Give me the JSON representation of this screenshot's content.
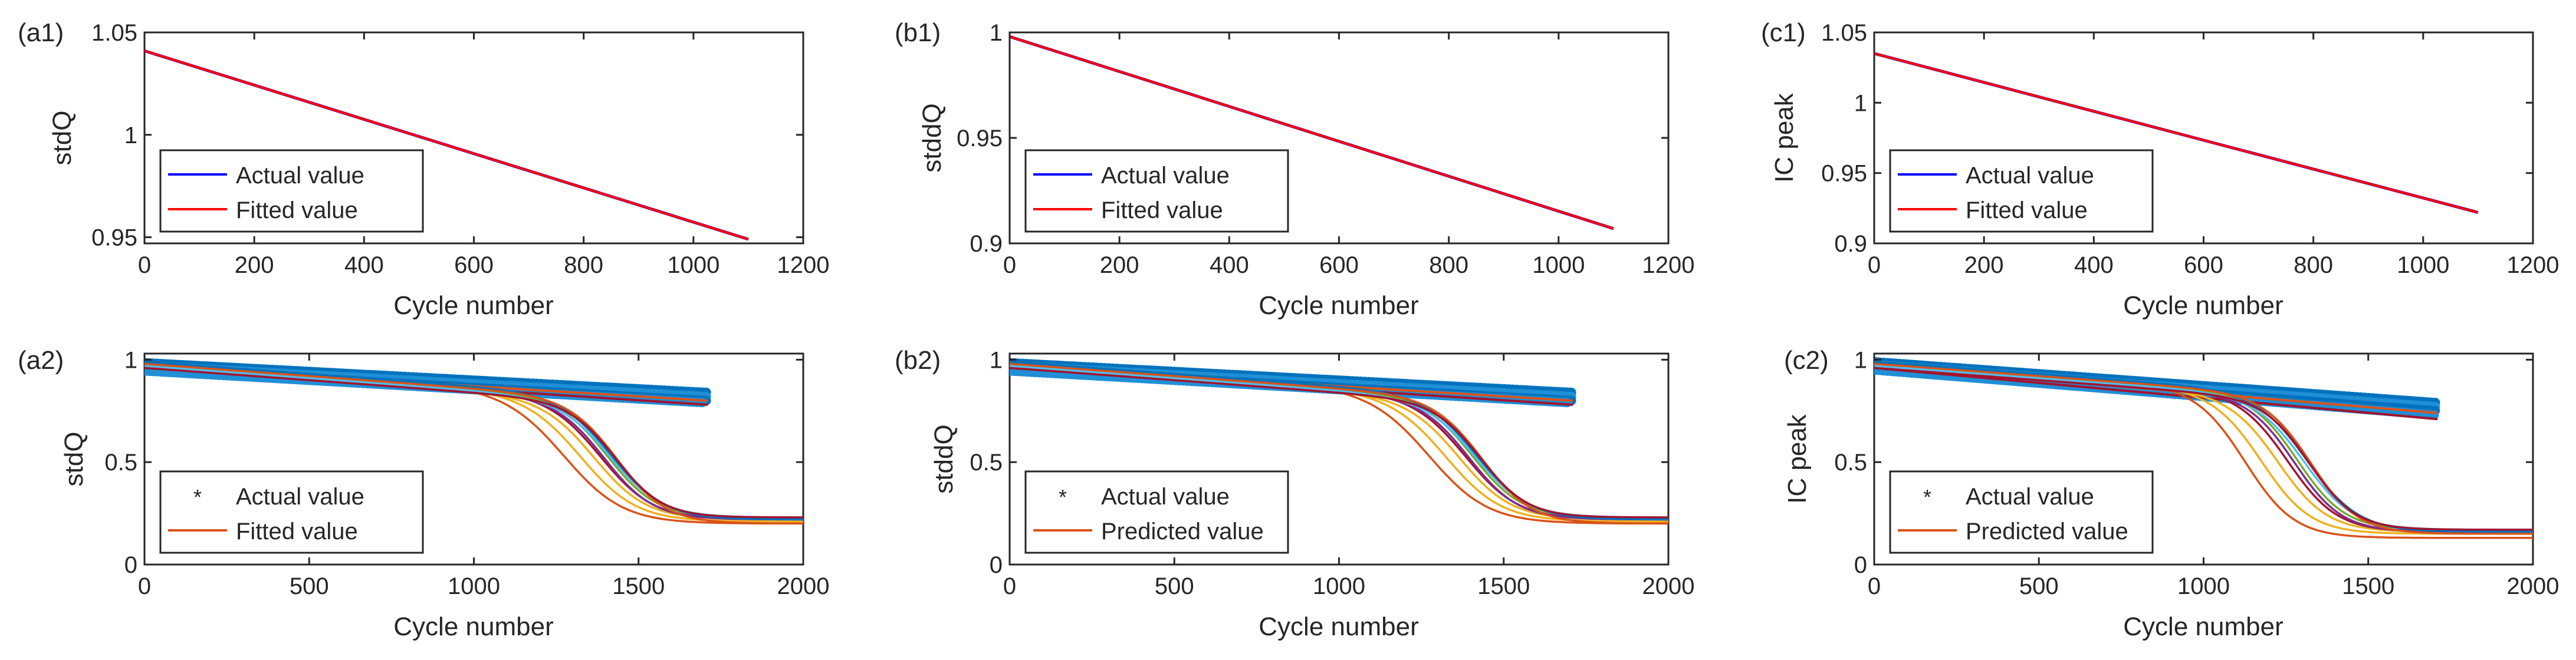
{
  "chart_data": [
    {
      "panel_label": "(a1)",
      "type": "line",
      "xlabel": "Cycle number",
      "ylabel": "stdQ",
      "xlim": [
        0,
        1200
      ],
      "ylim": [
        0.947,
        1.05
      ],
      "xticks": [
        0,
        200,
        400,
        600,
        800,
        1000,
        1200
      ],
      "yticks": [
        0.95,
        1,
        1.05
      ],
      "ytick_labels": [
        "0.95",
        "1",
        "1.05"
      ],
      "legend_placement": "bottom-left",
      "series": [
        {
          "name": "Actual value",
          "color": "#0000ff",
          "style": "solid",
          "x": [
            0,
            1100
          ],
          "y": [
            1.041,
            0.949
          ]
        },
        {
          "name": "Fitted value",
          "color": "#ff0000",
          "style": "solid",
          "x": [
            0,
            1100
          ],
          "y": [
            1.041,
            0.949
          ]
        }
      ]
    },
    {
      "panel_label": "(b1)",
      "type": "line",
      "xlabel": "Cycle number",
      "ylabel": "stddQ",
      "xlim": [
        0,
        1200
      ],
      "ylim": [
        0.9,
        1.0
      ],
      "xticks": [
        0,
        200,
        400,
        600,
        800,
        1000,
        1200
      ],
      "yticks": [
        0.9,
        0.95,
        1
      ],
      "ytick_labels": [
        "0.9",
        "0.95",
        "1"
      ],
      "legend_placement": "bottom-left",
      "series": [
        {
          "name": "Actual value",
          "color": "#0000ff",
          "style": "solid",
          "x": [
            0,
            1100
          ],
          "y": [
            0.998,
            0.907
          ]
        },
        {
          "name": "Fitted value",
          "color": "#ff0000",
          "style": "solid",
          "x": [
            0,
            1100
          ],
          "y": [
            0.998,
            0.907
          ]
        }
      ]
    },
    {
      "panel_label": "(c1)",
      "type": "line",
      "xlabel": "Cycle number",
      "ylabel": "IC peak",
      "xlim": [
        0,
        1200
      ],
      "ylim": [
        0.9,
        1.05
      ],
      "xticks": [
        0,
        200,
        400,
        600,
        800,
        1000,
        1200
      ],
      "yticks": [
        0.9,
        0.95,
        1,
        1.05
      ],
      "ytick_labels": [
        "0.9",
        "0.95",
        "1",
        "1.05"
      ],
      "legend_placement": "bottom-left",
      "series": [
        {
          "name": "Actual value",
          "color": "#0000ff",
          "style": "solid",
          "x": [
            0,
            1100
          ],
          "y": [
            1.035,
            0.922
          ]
        },
        {
          "name": "Fitted value",
          "color": "#ff0000",
          "style": "solid",
          "x": [
            0,
            1100
          ],
          "y": [
            1.035,
            0.922
          ]
        }
      ]
    },
    {
      "panel_label": "(a2)",
      "type": "line",
      "xlabel": "Cycle number",
      "ylabel": "stdQ",
      "xlim": [
        0,
        2000
      ],
      "ylim": [
        0,
        1.03
      ],
      "xticks": [
        0,
        500,
        1000,
        1500,
        2000
      ],
      "yticks": [
        0,
        0.5,
        1
      ],
      "ytick_labels": [
        "0",
        "0.5",
        "1"
      ],
      "legend_placement": "bottom-left",
      "legend": [
        {
          "name": "Actual value",
          "color": "#0072bd",
          "marker": "star"
        },
        {
          "name": "Fitted value",
          "color": "#d95319",
          "marker": "line"
        }
      ],
      "actual_tracks": [
        {
          "end_x": 1710,
          "start_y": 0.985,
          "end_y": 0.84
        },
        {
          "end_x": 1710,
          "start_y": 0.97,
          "end_y": 0.82
        },
        {
          "end_x": 1710,
          "start_y": 0.955,
          "end_y": 0.8
        },
        {
          "end_x": 1700,
          "start_y": 0.945,
          "end_y": 0.79
        }
      ],
      "fitted_curves": [
        {
          "color": "#d95319",
          "start": 0.99,
          "plateau": 0.2,
          "midpoint": 1280,
          "width": 90
        },
        {
          "color": "#edb120",
          "start": 0.98,
          "plateau": 0.21,
          "midpoint": 1330,
          "width": 85
        },
        {
          "color": "#edb120",
          "start": 0.97,
          "plateau": 0.22,
          "midpoint": 1370,
          "width": 80
        },
        {
          "color": "#a2142f",
          "start": 0.98,
          "plateau": 0.22,
          "midpoint": 1390,
          "width": 80
        },
        {
          "color": "#7e2f8e",
          "start": 0.97,
          "plateau": 0.22,
          "midpoint": 1400,
          "width": 75
        },
        {
          "color": "#77ac30",
          "start": 0.98,
          "plateau": 0.23,
          "midpoint": 1410,
          "width": 75
        },
        {
          "color": "#4dbeee",
          "start": 0.97,
          "plateau": 0.23,
          "midpoint": 1420,
          "width": 78
        },
        {
          "color": "#0072bd",
          "start": 0.99,
          "plateau": 0.22,
          "midpoint": 1425,
          "width": 80
        },
        {
          "color": "#d95319",
          "start": 0.98,
          "plateau": 0.2,
          "midpoint": 1440,
          "width": 75
        },
        {
          "color": "#a2142f",
          "start": 0.96,
          "plateau": 0.23,
          "midpoint": 1435,
          "width": 72
        }
      ],
      "fitted_lines": [
        {
          "color": "#d95319",
          "y0": 0.97,
          "x1": 1710,
          "y1": 0.8
        },
        {
          "color": "#a2142f",
          "y0": 0.96,
          "x1": 1710,
          "y1": 0.78
        }
      ]
    },
    {
      "panel_label": "(b2)",
      "type": "line",
      "xlabel": "Cycle number",
      "ylabel": "stddQ",
      "xlim": [
        0,
        2000
      ],
      "ylim": [
        0,
        1.03
      ],
      "xticks": [
        0,
        500,
        1000,
        1500,
        2000
      ],
      "yticks": [
        0,
        0.5,
        1
      ],
      "ytick_labels": [
        "0",
        "0.5",
        "1"
      ],
      "legend_placement": "bottom-left",
      "legend": [
        {
          "name": "Actual value",
          "color": "#0072bd",
          "marker": "star"
        },
        {
          "name": "Predicted value",
          "color": "#d95319",
          "marker": "line"
        }
      ],
      "actual_tracks": [
        {
          "end_x": 1710,
          "start_y": 0.985,
          "end_y": 0.84
        },
        {
          "end_x": 1710,
          "start_y": 0.97,
          "end_y": 0.82
        },
        {
          "end_x": 1710,
          "start_y": 0.955,
          "end_y": 0.8
        },
        {
          "end_x": 1700,
          "start_y": 0.945,
          "end_y": 0.79
        }
      ],
      "fitted_curves": [
        {
          "color": "#d95319",
          "start": 0.99,
          "plateau": 0.2,
          "midpoint": 1280,
          "width": 90
        },
        {
          "color": "#edb120",
          "start": 0.98,
          "plateau": 0.21,
          "midpoint": 1330,
          "width": 85
        },
        {
          "color": "#edb120",
          "start": 0.97,
          "plateau": 0.22,
          "midpoint": 1370,
          "width": 80
        },
        {
          "color": "#a2142f",
          "start": 0.98,
          "plateau": 0.22,
          "midpoint": 1390,
          "width": 80
        },
        {
          "color": "#7e2f8e",
          "start": 0.97,
          "plateau": 0.22,
          "midpoint": 1400,
          "width": 75
        },
        {
          "color": "#77ac30",
          "start": 0.98,
          "plateau": 0.23,
          "midpoint": 1410,
          "width": 75
        },
        {
          "color": "#4dbeee",
          "start": 0.97,
          "plateau": 0.23,
          "midpoint": 1420,
          "width": 78
        },
        {
          "color": "#0072bd",
          "start": 0.99,
          "plateau": 0.22,
          "midpoint": 1425,
          "width": 80
        },
        {
          "color": "#d95319",
          "start": 0.98,
          "plateau": 0.2,
          "midpoint": 1440,
          "width": 75
        },
        {
          "color": "#a2142f",
          "start": 0.96,
          "plateau": 0.23,
          "midpoint": 1435,
          "width": 72
        }
      ],
      "fitted_lines": [
        {
          "color": "#d95319",
          "y0": 0.97,
          "x1": 1710,
          "y1": 0.8
        },
        {
          "color": "#a2142f",
          "y0": 0.96,
          "x1": 1710,
          "y1": 0.78
        }
      ]
    },
    {
      "panel_label": "(c2)",
      "type": "line",
      "xlabel": "Cycle number",
      "ylabel": "IC peak",
      "xlim": [
        0,
        2000
      ],
      "ylim": [
        0,
        1.03
      ],
      "xticks": [
        0,
        500,
        1000,
        1500,
        2000
      ],
      "yticks": [
        0,
        0.5,
        1
      ],
      "ytick_labels": [
        "0",
        "0.5",
        "1"
      ],
      "legend_placement": "bottom-left",
      "legend": [
        {
          "name": "Actual value",
          "color": "#0072bd",
          "marker": "star"
        },
        {
          "name": "Predicted value",
          "color": "#d95319",
          "marker": "line"
        }
      ],
      "actual_tracks": [
        {
          "end_x": 1710,
          "start_y": 0.99,
          "end_y": 0.79
        },
        {
          "end_x": 1710,
          "start_y": 0.975,
          "end_y": 0.77
        },
        {
          "end_x": 1710,
          "start_y": 0.96,
          "end_y": 0.75
        },
        {
          "end_x": 1700,
          "start_y": 0.95,
          "end_y": 0.73
        }
      ],
      "fitted_curves": [
        {
          "color": "#d95319",
          "start": 0.99,
          "plateau": 0.13,
          "midpoint": 1130,
          "width": 75
        },
        {
          "color": "#edb120",
          "start": 0.98,
          "plateau": 0.15,
          "midpoint": 1180,
          "width": 75
        },
        {
          "color": "#edb120",
          "start": 0.97,
          "plateau": 0.16,
          "midpoint": 1230,
          "width": 75
        },
        {
          "color": "#a2142f",
          "start": 0.98,
          "plateau": 0.16,
          "midpoint": 1260,
          "width": 75
        },
        {
          "color": "#7e2f8e",
          "start": 0.97,
          "plateau": 0.16,
          "midpoint": 1280,
          "width": 72
        },
        {
          "color": "#77ac30",
          "start": 0.98,
          "plateau": 0.17,
          "midpoint": 1290,
          "width": 72
        },
        {
          "color": "#4dbeee",
          "start": 0.97,
          "plateau": 0.17,
          "midpoint": 1310,
          "width": 75
        },
        {
          "color": "#0072bd",
          "start": 0.99,
          "plateau": 0.16,
          "midpoint": 1320,
          "width": 78
        },
        {
          "color": "#d95319",
          "start": 0.98,
          "plateau": 0.15,
          "midpoint": 1330,
          "width": 72
        },
        {
          "color": "#a2142f",
          "start": 0.96,
          "plateau": 0.17,
          "midpoint": 1325,
          "width": 70
        }
      ],
      "fitted_lines": [
        {
          "color": "#d95319",
          "y0": 0.97,
          "x1": 1710,
          "y1": 0.74
        },
        {
          "color": "#a2142f",
          "y0": 0.96,
          "x1": 1710,
          "y1": 0.71
        }
      ]
    }
  ]
}
